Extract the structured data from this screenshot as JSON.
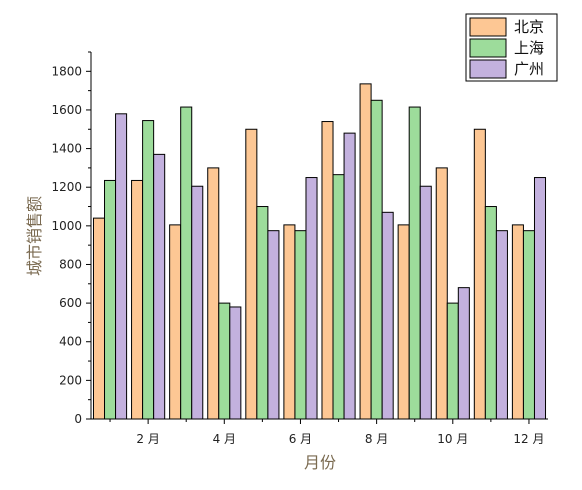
{
  "chart_data": {
    "type": "bar",
    "title": "",
    "xlabel": "月份",
    "ylabel": "城市销售额",
    "months": [
      1,
      2,
      3,
      4,
      5,
      6,
      7,
      8,
      9,
      10,
      11,
      12
    ],
    "x_tick_labels": [
      {
        "month": 2,
        "label": "2 月"
      },
      {
        "month": 4,
        "label": "4 月"
      },
      {
        "month": 6,
        "label": "6 月"
      },
      {
        "month": 8,
        "label": "8 月"
      },
      {
        "month": 10,
        "label": "10 月"
      },
      {
        "month": 12,
        "label": "12 月"
      }
    ],
    "y_ticks": [
      0,
      200,
      400,
      600,
      800,
      1000,
      1200,
      1400,
      1600,
      1800
    ],
    "ylim": [
      0,
      1900
    ],
    "xlim": [
      0.5,
      12.5
    ],
    "grid": false,
    "legend_position": "top-right",
    "series": [
      {
        "name": "北京",
        "color": "#fdc794",
        "values": [
          1040,
          1235,
          1005,
          1300,
          1500,
          1005,
          1540,
          1735,
          1005,
          1300,
          1500,
          1005
        ]
      },
      {
        "name": "上海",
        "color": "#9ddc9b",
        "values": [
          1235,
          1545,
          1615,
          600,
          1100,
          975,
          1265,
          1650,
          1615,
          600,
          1100,
          975
        ]
      },
      {
        "name": "广州",
        "color": "#c3b1de",
        "values": [
          1580,
          1370,
          1205,
          580,
          975,
          1250,
          1480,
          1070,
          1205,
          680,
          975,
          1250
        ]
      }
    ]
  }
}
